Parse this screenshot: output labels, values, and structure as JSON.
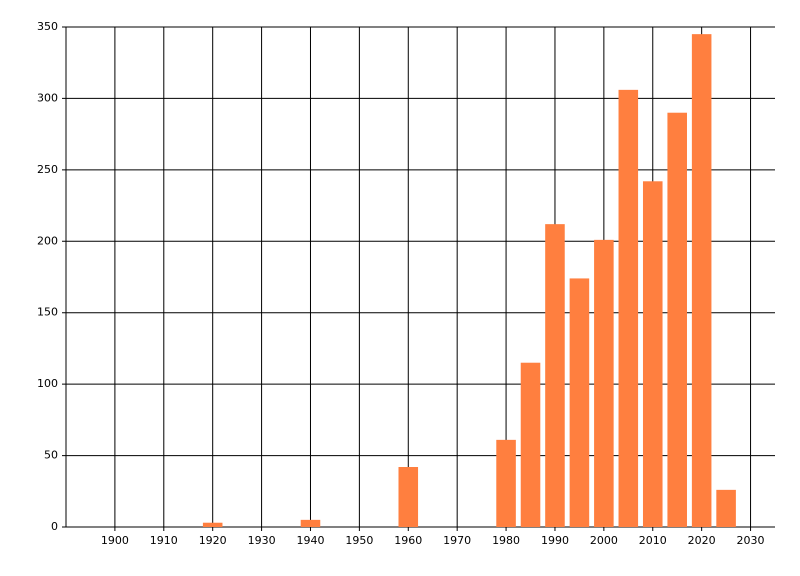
{
  "chart_data": {
    "type": "bar",
    "x": [
      1920,
      1940,
      1960,
      1980,
      1985,
      1990,
      1995,
      2000,
      2005,
      2010,
      2015,
      2020,
      2025
    ],
    "values": [
      3,
      5,
      42,
      61,
      115,
      212,
      174,
      201,
      306,
      242,
      290,
      345,
      26
    ],
    "color": "#ff7f3f",
    "xlim": [
      1890,
      2035
    ],
    "xticks": [
      1900,
      1910,
      1920,
      1930,
      1940,
      1950,
      1960,
      1970,
      1980,
      1990,
      2000,
      2010,
      2020,
      2030
    ],
    "ylim": [
      0,
      350
    ],
    "yticks": [
      0,
      50,
      100,
      150,
      200,
      250,
      300,
      350
    ],
    "grid": true
  }
}
